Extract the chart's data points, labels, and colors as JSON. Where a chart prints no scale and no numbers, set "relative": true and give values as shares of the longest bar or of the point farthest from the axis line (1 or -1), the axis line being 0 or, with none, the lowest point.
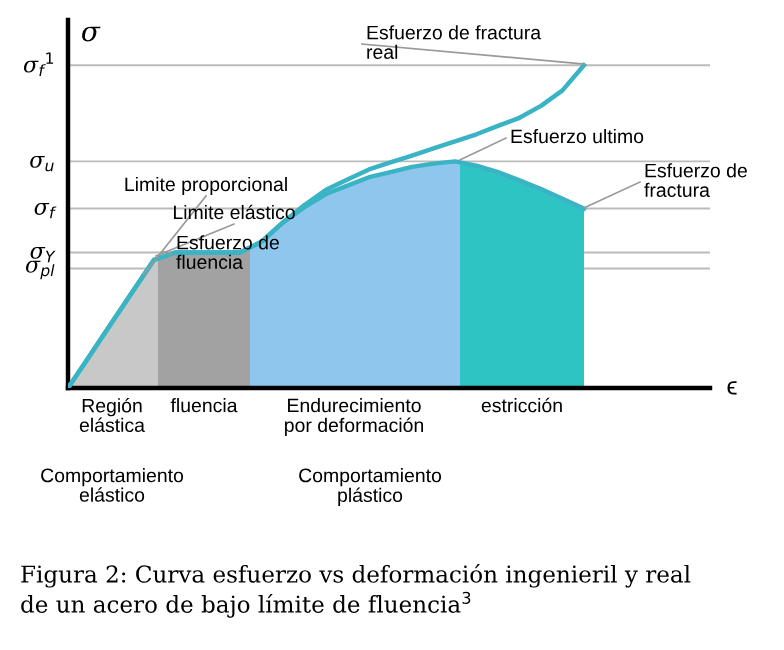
{
  "chart_data": {
    "type": "line",
    "relative": true,
    "ylabel": "σ",
    "marker": "none",
    "line_style": "solid",
    "categories": [
      null,
      null,
      null,
      null,
      null,
      null,
      null,
      null,
      null,
      null,
      null,
      null,
      null,
      null,
      null,
      null,
      null,
      null,
      null,
      null,
      null,
      null,
      null,
      null,
      null
    ],
    "series": [
      {
        "color": "#3ab4c4",
        "values": [
          0,
          0.099,
          0.199,
          0.298,
          0.397,
          0.42,
          0.42,
          0.42,
          0.42,
          0.453,
          0.513,
          0.56,
          0.601,
          0.627,
          0.653,
          0.669,
          0.685,
          0.695,
          0.702,
          0.689,
          0.669,
          0.643,
          0.616,
          0.586,
          0.556
        ]
      },
      {
        "color": "#3ab4c4",
        "values": [
          0,
          0.099,
          0.199,
          0.298,
          0.397,
          0.42,
          0.42,
          0.42,
          0.42,
          0.453,
          0.513,
          0.567,
          0.614,
          0.646,
          0.677,
          0.699,
          0.72,
          0.742,
          0.764,
          0.786,
          0.812,
          0.837,
          0.874,
          0.922,
          1.0
        ]
      }
    ],
    "ref_lines": [
      {
        "axis": "y",
        "value": 1.0,
        "label": "σ$_{f}$$^{1}$",
        "color": "#bbbbbb"
      },
      {
        "axis": "y",
        "value": 0.702,
        "label": "σ$_{u}$",
        "color": "#bbbbbb"
      },
      {
        "axis": "y",
        "value": 0.556,
        "label": "σ$_{f}$",
        "color": "#bbbbbb"
      },
      {
        "axis": "y",
        "value": 0.42,
        "label": "σ$_{Y}$",
        "color": "#bbbbbb"
      },
      {
        "axis": "y",
        "value": 0.37,
        "label": "σ$_{pl}$",
        "color": "#bbbbbb"
      }
    ],
    "annotations": [
      "Limite proporcional",
      "Limite elástico",
      "Esfuerzo de\nfluencia",
      "Esfuerzo ultimo",
      "Esfuerzo de\nfractura",
      "Esfuerzo de fractura\nreal",
      "Región\nelástica",
      "fluencia",
      "Endurecimiento\npor deformación",
      "estricción",
      "Comportamiento\nelástico",
      "Comportamiento\nplástico",
      "ϵ",
      "Figura 2: Curva esfuerzo vs deformación ingenieril y real\nde un acero de bajo límite de fluencia$^{3}$"
    ]
  }
}
